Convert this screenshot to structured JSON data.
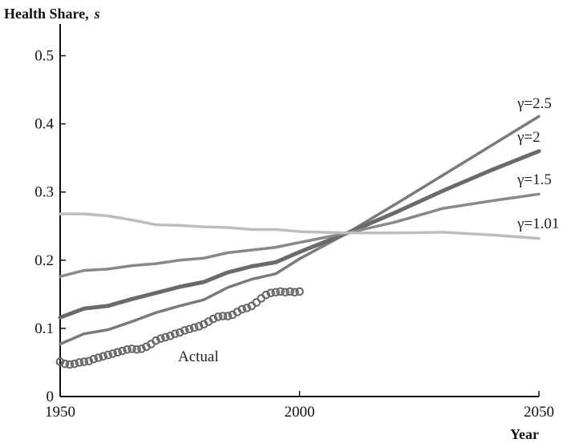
{
  "chart_data": {
    "type": "line",
    "title": "Health Share,",
    "title_symbol": "s",
    "xlabel": "Year",
    "ylabel": "",
    "xlim": [
      1950,
      2050
    ],
    "ylim": [
      0,
      0.55
    ],
    "xticks": [
      1950,
      2000,
      2050
    ],
    "yticks": [
      0,
      0.1,
      0.2,
      0.3,
      0.4,
      0.5
    ],
    "ytick_labels": [
      "0",
      "0.1",
      "0.2",
      "0.3",
      "0.4",
      "0.5"
    ],
    "grid": false,
    "legend": "none",
    "series": [
      {
        "name": "γ=2.5",
        "color": "#7a7a7a",
        "marker": "none",
        "x": [
          1950,
          1955,
          1960,
          1965,
          1970,
          1975,
          1980,
          1985,
          1990,
          1995,
          2000,
          2010,
          2020,
          2030,
          2040,
          2050
        ],
        "y": [
          0.077,
          0.092,
          0.098,
          0.11,
          0.123,
          0.133,
          0.142,
          0.16,
          0.172,
          0.18,
          0.202,
          0.24,
          0.282,
          0.325,
          0.368,
          0.411
        ]
      },
      {
        "name": "γ=2",
        "color": "#6a6a6a",
        "marker": "none",
        "x": [
          1950,
          1955,
          1960,
          1965,
          1970,
          1975,
          1980,
          1985,
          1990,
          1995,
          2000,
          2010,
          2020,
          2030,
          2040,
          2050
        ],
        "y": [
          0.116,
          0.129,
          0.133,
          0.143,
          0.152,
          0.161,
          0.168,
          0.182,
          0.191,
          0.197,
          0.212,
          0.24,
          0.27,
          0.302,
          0.332,
          0.36
        ]
      },
      {
        "name": "γ=1.5",
        "color": "#888888",
        "marker": "none",
        "x": [
          1950,
          1955,
          1960,
          1965,
          1970,
          1975,
          1980,
          1985,
          1990,
          1995,
          2000,
          2010,
          2020,
          2030,
          2040,
          2050
        ],
        "y": [
          0.176,
          0.185,
          0.187,
          0.192,
          0.195,
          0.2,
          0.203,
          0.211,
          0.215,
          0.219,
          0.226,
          0.24,
          0.256,
          0.276,
          0.287,
          0.297
        ]
      },
      {
        "name": "γ=1.01",
        "color": "#bdbdbd",
        "marker": "none",
        "x": [
          1950,
          1955,
          1960,
          1965,
          1970,
          1975,
          1980,
          1985,
          1990,
          1995,
          2000,
          2010,
          2020,
          2030,
          2040,
          2050
        ],
        "y": [
          0.268,
          0.268,
          0.265,
          0.259,
          0.252,
          0.251,
          0.249,
          0.248,
          0.245,
          0.245,
          0.242,
          0.24,
          0.24,
          0.241,
          0.237,
          0.232
        ]
      },
      {
        "name": "Actual",
        "color": "#666666",
        "marker": "circle",
        "x": [
          1950,
          1951,
          1952,
          1953,
          1954,
          1955,
          1956,
          1957,
          1958,
          1959,
          1960,
          1961,
          1962,
          1963,
          1964,
          1965,
          1966,
          1967,
          1968,
          1969,
          1970,
          1971,
          1972,
          1973,
          1974,
          1975,
          1976,
          1977,
          1978,
          1979,
          1980,
          1981,
          1982,
          1983,
          1984,
          1985,
          1986,
          1987,
          1988,
          1989,
          1990,
          1991,
          1992,
          1993,
          1994,
          1995,
          1996,
          1997,
          1998,
          1999,
          2000
        ],
        "y": [
          0.051,
          0.048,
          0.047,
          0.048,
          0.05,
          0.051,
          0.052,
          0.055,
          0.057,
          0.059,
          0.061,
          0.063,
          0.065,
          0.067,
          0.069,
          0.07,
          0.069,
          0.07,
          0.073,
          0.077,
          0.082,
          0.085,
          0.087,
          0.089,
          0.092,
          0.094,
          0.097,
          0.099,
          0.101,
          0.103,
          0.106,
          0.11,
          0.114,
          0.117,
          0.118,
          0.118,
          0.12,
          0.124,
          0.128,
          0.13,
          0.133,
          0.138,
          0.144,
          0.149,
          0.152,
          0.153,
          0.154,
          0.153,
          0.154,
          0.153,
          0.154
        ]
      }
    ]
  },
  "colors": {
    "axis": "#111111",
    "text": "#222222"
  }
}
